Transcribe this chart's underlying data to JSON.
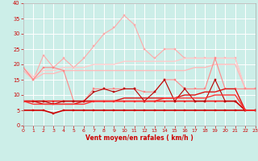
{
  "xlabel": "Vent moyen/en rafales ( km/h )",
  "xlim": [
    0,
    23
  ],
  "ylim": [
    0,
    40
  ],
  "yticks": [
    0,
    5,
    10,
    15,
    20,
    25,
    30,
    35,
    40
  ],
  "xticks": [
    0,
    1,
    2,
    3,
    4,
    5,
    6,
    7,
    8,
    9,
    10,
    11,
    12,
    13,
    14,
    15,
    16,
    17,
    18,
    19,
    20,
    21,
    22,
    23
  ],
  "bg_color": "#cceee8",
  "grid_color": "#ffffff",
  "lines": [
    {
      "x": [
        0,
        1,
        2,
        3,
        4,
        5,
        6,
        7,
        8,
        9,
        10,
        11,
        12,
        13,
        14,
        15,
        16,
        17,
        18,
        19,
        20,
        21,
        22,
        23
      ],
      "y": [
        19,
        15,
        23,
        19,
        22,
        19,
        22,
        26,
        30,
        32,
        36,
        33,
        25,
        22,
        25,
        25,
        22,
        22,
        22,
        22,
        22,
        22,
        12,
        12
      ],
      "color": "#ffaaaa",
      "lw": 0.8,
      "marker": "s",
      "ms": 1.5
    },
    {
      "x": [
        0,
        1,
        2,
        3,
        4,
        5,
        6,
        7,
        8,
        9,
        10,
        11,
        12,
        13,
        14,
        15,
        16,
        17,
        18,
        19,
        20,
        21,
        22,
        23
      ],
      "y": [
        19,
        16,
        18,
        18,
        19,
        19,
        19,
        20,
        20,
        20,
        21,
        21,
        21,
        21,
        21,
        21,
        22,
        22,
        22,
        22,
        22,
        22,
        12,
        12
      ],
      "color": "#ffcccc",
      "lw": 1.0,
      "marker": null,
      "ms": 0
    },
    {
      "x": [
        0,
        1,
        2,
        3,
        4,
        5,
        6,
        7,
        8,
        9,
        10,
        11,
        12,
        13,
        14,
        15,
        16,
        17,
        18,
        19,
        20,
        21,
        22,
        23
      ],
      "y": [
        18,
        15,
        17,
        17,
        18,
        18,
        18,
        18,
        18,
        18,
        18,
        18,
        18,
        18,
        18,
        18,
        18,
        19,
        19,
        20,
        20,
        20,
        12,
        12
      ],
      "color": "#ffbbbb",
      "lw": 1.0,
      "marker": null,
      "ms": 0
    },
    {
      "x": [
        0,
        1,
        2,
        3,
        4,
        5,
        6,
        7,
        8,
        9,
        10,
        11,
        12,
        13,
        14,
        15,
        16,
        17,
        18,
        19,
        20,
        21,
        22,
        23
      ],
      "y": [
        19,
        15,
        19,
        19,
        18,
        8,
        8,
        12,
        12,
        12,
        12,
        12,
        11,
        11,
        15,
        15,
        12,
        12,
        12,
        22,
        12,
        12,
        12,
        12
      ],
      "color": "#ff8888",
      "lw": 0.8,
      "marker": "s",
      "ms": 1.5
    },
    {
      "x": [
        0,
        1,
        2,
        3,
        4,
        5,
        6,
        7,
        8,
        9,
        10,
        11,
        12,
        13,
        14,
        15,
        16,
        17,
        18,
        19,
        20,
        21,
        22,
        23
      ],
      "y": [
        8,
        8,
        8,
        8,
        8,
        8,
        8,
        8,
        8,
        8,
        8,
        8,
        8,
        8,
        8,
        8,
        8,
        8,
        8,
        8,
        8,
        8,
        5,
        5
      ],
      "color": "#ee2222",
      "lw": 1.2,
      "marker": "s",
      "ms": 1.5
    },
    {
      "x": [
        0,
        1,
        2,
        3,
        4,
        5,
        6,
        7,
        8,
        9,
        10,
        11,
        12,
        13,
        14,
        15,
        16,
        17,
        18,
        19,
        20,
        21,
        22,
        23
      ],
      "y": [
        5,
        5,
        5,
        4,
        5,
        5,
        5,
        5,
        5,
        5,
        5,
        5,
        5,
        5,
        5,
        5,
        5,
        5,
        5,
        5,
        5,
        5,
        5,
        5
      ],
      "color": "#cc0000",
      "lw": 1.2,
      "marker": "s",
      "ms": 1.5
    },
    {
      "x": [
        0,
        1,
        2,
        3,
        4,
        5,
        6,
        7,
        8,
        9,
        10,
        11,
        12,
        13,
        14,
        15,
        16,
        17,
        18,
        19,
        20,
        21,
        22,
        23
      ],
      "y": [
        8,
        8,
        8,
        7,
        8,
        8,
        8,
        11,
        12,
        11,
        12,
        12,
        8,
        11,
        15,
        8,
        12,
        8,
        8,
        15,
        8,
        8,
        5,
        5
      ],
      "color": "#bb0000",
      "lw": 0.8,
      "marker": "s",
      "ms": 1.5
    },
    {
      "x": [
        0,
        1,
        2,
        3,
        4,
        5,
        6,
        7,
        8,
        9,
        10,
        11,
        12,
        13,
        14,
        15,
        16,
        17,
        18,
        19,
        20,
        21,
        22,
        23
      ],
      "y": [
        8,
        8,
        7,
        7,
        7,
        7,
        8,
        8,
        8,
        8,
        9,
        9,
        9,
        9,
        9,
        9,
        10,
        10,
        11,
        11,
        12,
        12,
        5,
        5
      ],
      "color": "#dd1111",
      "lw": 1.0,
      "marker": null,
      "ms": 0
    },
    {
      "x": [
        0,
        1,
        2,
        3,
        4,
        5,
        6,
        7,
        8,
        9,
        10,
        11,
        12,
        13,
        14,
        15,
        16,
        17,
        18,
        19,
        20,
        21,
        22,
        23
      ],
      "y": [
        8,
        7,
        7,
        7,
        7,
        7,
        7,
        8,
        8,
        8,
        8,
        8,
        8,
        8,
        9,
        9,
        9,
        9,
        9,
        10,
        10,
        10,
        5,
        5
      ],
      "color": "#ff3333",
      "lw": 1.0,
      "marker": null,
      "ms": 0
    }
  ]
}
